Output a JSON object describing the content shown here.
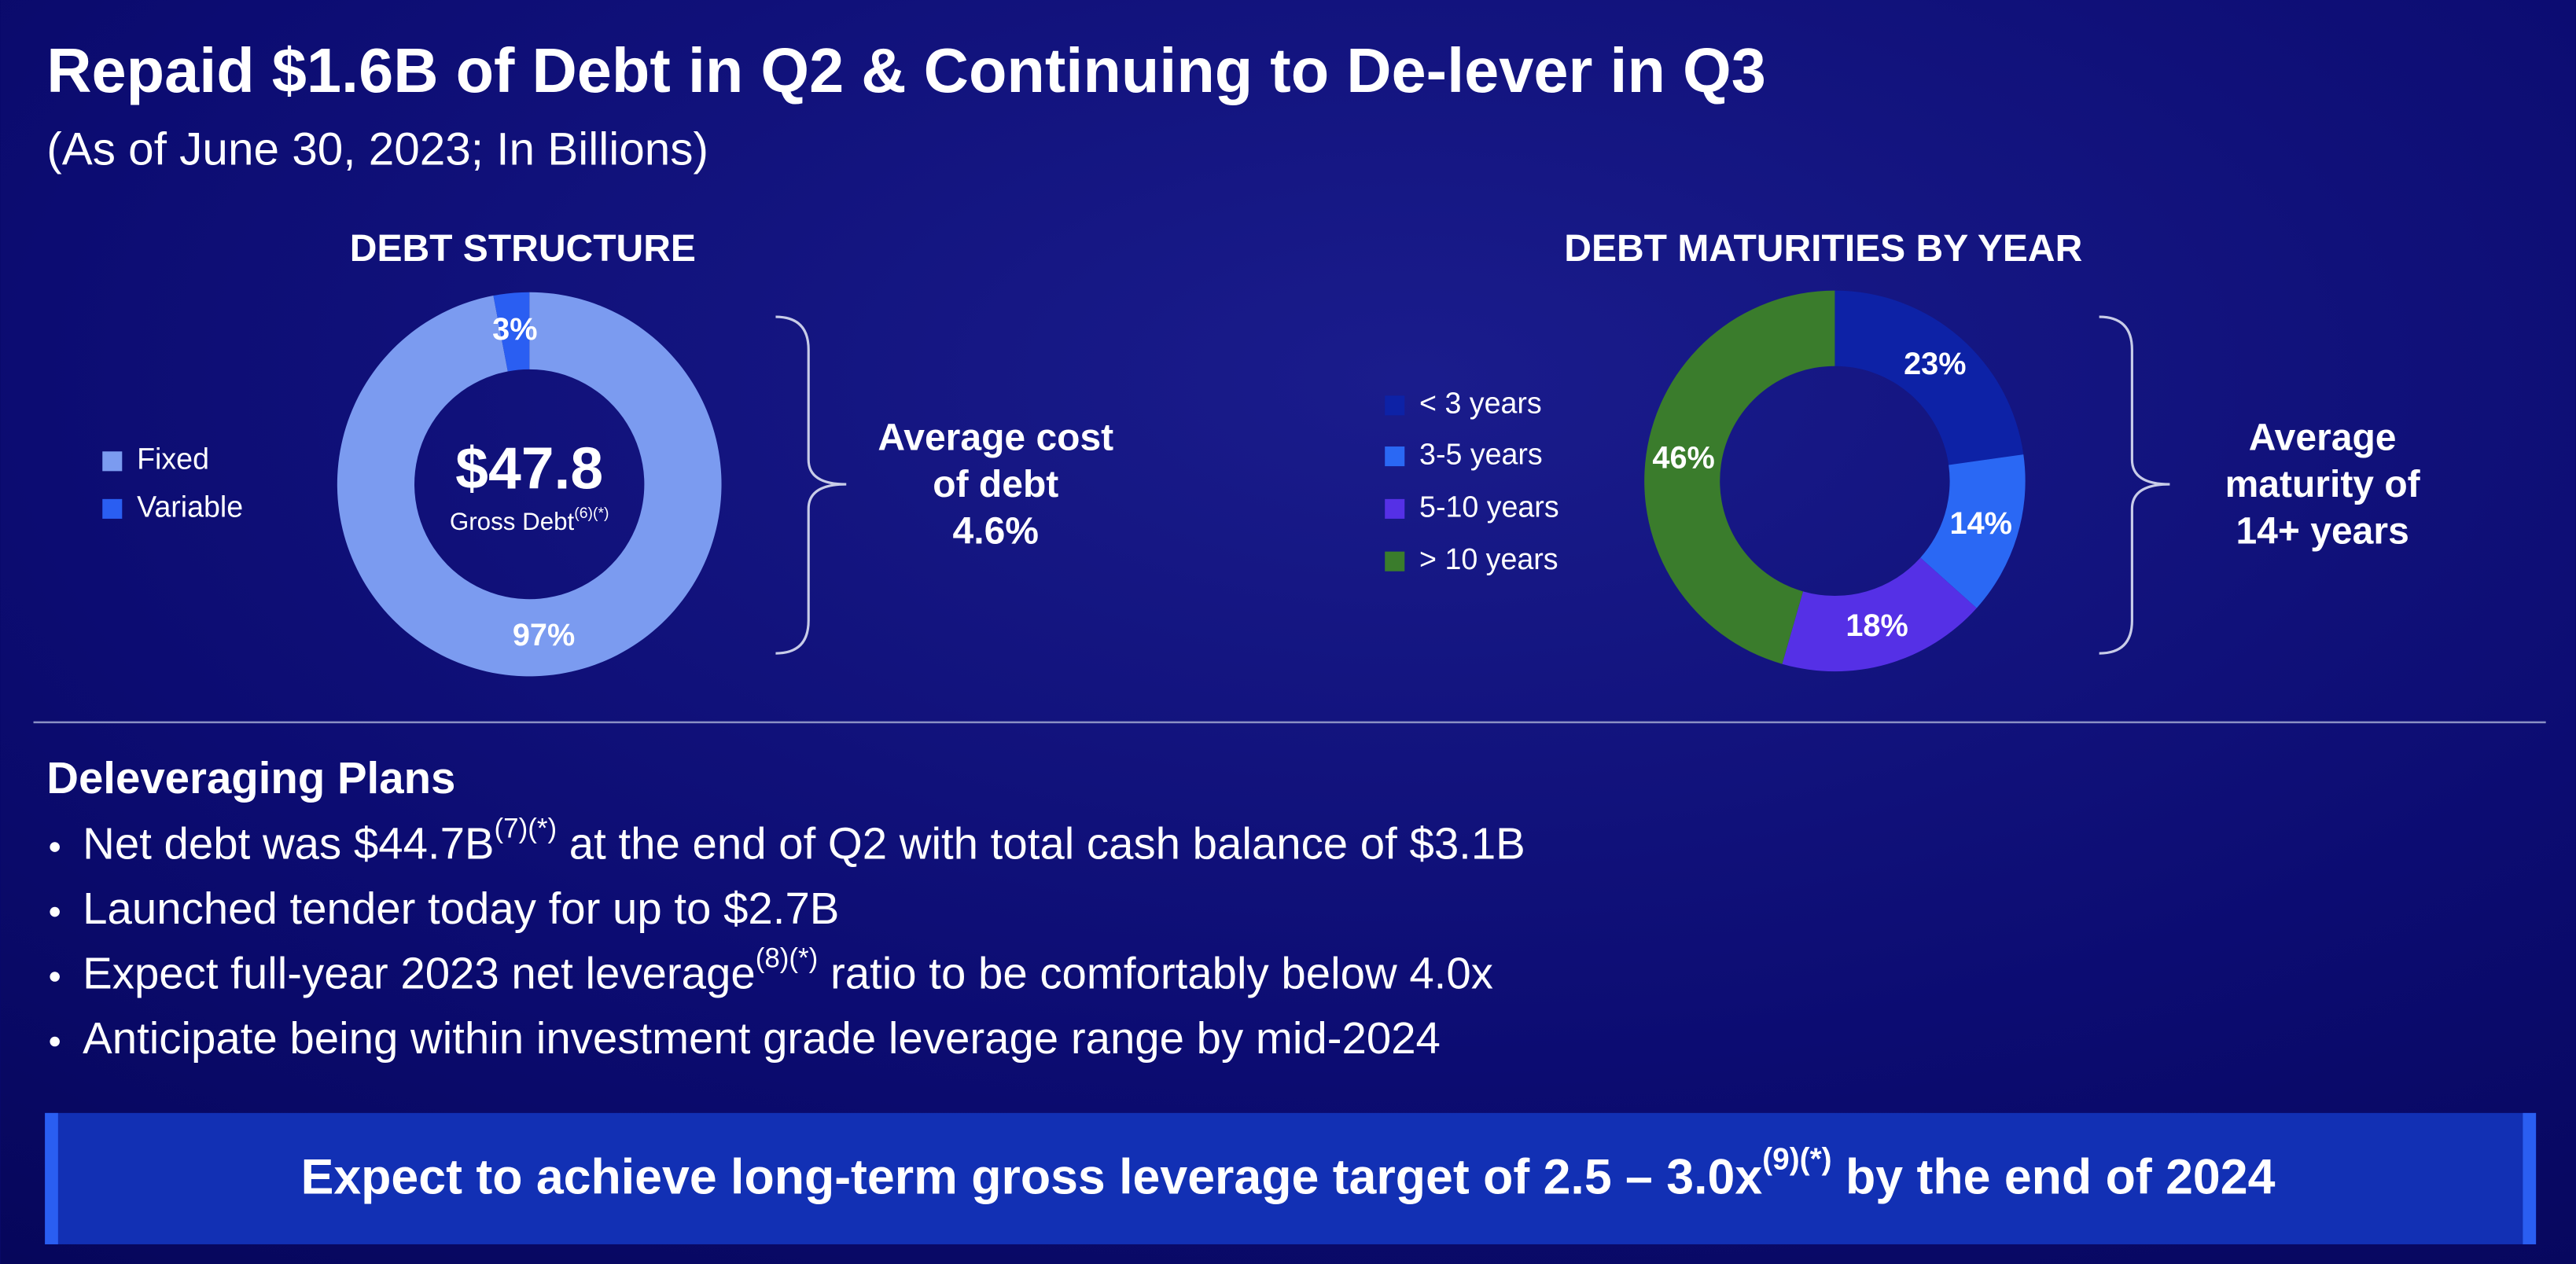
{
  "title": "Repaid $1.6B of Debt in Q2 & Continuing to De-lever in Q3",
  "subtitle": "(As of June 30, 2023; In Billions)",
  "chart_data": [
    {
      "type": "donut",
      "title": "DEBT STRUCTURE",
      "categories": [
        "Fixed",
        "Variable"
      ],
      "values": [
        97,
        3
      ],
      "value_labels": [
        "97%",
        "3%"
      ],
      "colors": [
        "#7b9bf0",
        "#2a5ef2"
      ],
      "center_text": "$47.8",
      "center_label": {
        "text": "Gross Debt",
        "sup": "(6)(*)"
      },
      "annotation": [
        "Average cost",
        "of debt",
        "4.6%"
      ]
    },
    {
      "type": "donut",
      "title": "DEBT MATURITIES BY YEAR",
      "categories": [
        "< 3 years",
        "3-5 years",
        "5-10 years",
        "> 10 years"
      ],
      "values": [
        23,
        14,
        18,
        46
      ],
      "value_labels": [
        "23%",
        "14%",
        "18%",
        "46%"
      ],
      "colors": [
        "#0d22a6",
        "#2a68f4",
        "#5530e6",
        "#3a7c2c"
      ],
      "annotation": [
        "Average",
        "maturity of",
        "14+ years"
      ]
    }
  ],
  "plans": {
    "heading": "Deleveraging Plans",
    "bullets": [
      {
        "text": "Net debt was $44.7B",
        "sup": "(7)(*)",
        "rest": " at the end of Q2 with total cash balance of $3.1B"
      },
      {
        "text": "Launched tender today for up to $2.7B"
      },
      {
        "text": "Expect full-year 2023 net leverage",
        "sup": "(8)(*)",
        "rest": " ratio to be comfortably below 4.0x"
      },
      {
        "text": "Anticipate being within investment grade leverage range by mid-2024"
      }
    ]
  },
  "banner": {
    "text": "Expect to achieve long-term gross leverage target of 2.5 – 3.0x",
    "sup": "(9)(*)",
    "rest": " by the end of 2024"
  }
}
